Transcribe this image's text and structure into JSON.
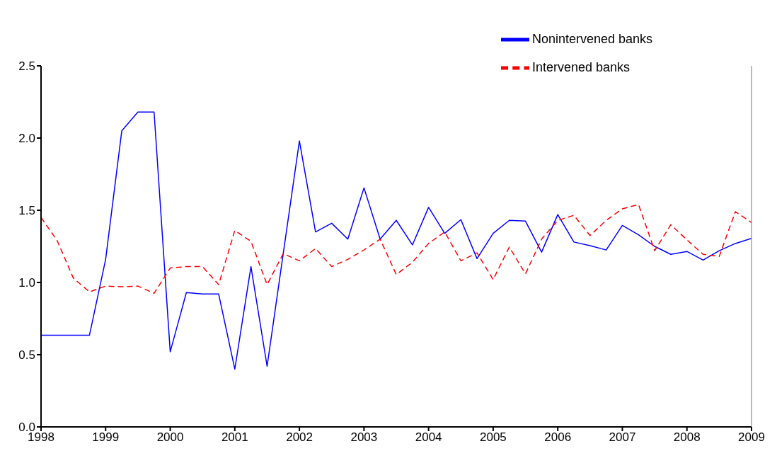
{
  "chart_data": {
    "type": "line",
    "x": [
      1998,
      1998.25,
      1998.5,
      1998.75,
      1999,
      1999.25,
      1999.5,
      1999.75,
      2000,
      2000.25,
      2000.5,
      2000.75,
      2001,
      2001.25,
      2001.5,
      2001.75,
      2002,
      2002.25,
      2002.5,
      2002.75,
      2003,
      2003.25,
      2003.5,
      2003.75,
      2004,
      2004.25,
      2004.5,
      2004.75,
      2005,
      2005.25,
      2005.5,
      2005.75,
      2006,
      2006.25,
      2006.5,
      2006.75,
      2007,
      2007.25,
      2007.5,
      2007.75,
      2008,
      2008.25,
      2008.5,
      2008.75,
      2009
    ],
    "series": [
      {
        "name": "Nonintervened banks",
        "color": "#0000ff",
        "line_style": "solid",
        "values": [
          0.635,
          0.635,
          0.635,
          0.635,
          1.16,
          2.05,
          2.18,
          2.18,
          0.52,
          0.93,
          0.92,
          0.92,
          0.4,
          1.11,
          0.42,
          1.2,
          1.98,
          1.35,
          1.41,
          1.3,
          1.655,
          1.3,
          1.43,
          1.26,
          1.52,
          1.34,
          1.435,
          1.165,
          1.34,
          1.43,
          1.425,
          1.21,
          1.47,
          1.28,
          1.255,
          1.225,
          1.395,
          1.33,
          1.25,
          1.195,
          1.215,
          1.155,
          1.22,
          1.27,
          1.305
        ]
      },
      {
        "name": "Intervened banks",
        "color": "#ff0000",
        "line_style": "dashed",
        "values": [
          1.45,
          1.29,
          1.03,
          0.935,
          0.975,
          0.97,
          0.975,
          0.925,
          1.1,
          1.11,
          1.11,
          0.985,
          1.36,
          1.285,
          0.985,
          1.2,
          1.15,
          1.235,
          1.11,
          1.16,
          1.225,
          1.3,
          1.055,
          1.14,
          1.27,
          1.35,
          1.15,
          1.205,
          1.02,
          1.245,
          1.06,
          1.3,
          1.43,
          1.465,
          1.325,
          1.43,
          1.51,
          1.54,
          1.22,
          1.4,
          1.295,
          1.195,
          1.18,
          1.49,
          1.415
        ]
      }
    ],
    "xlim": [
      1998,
      2009
    ],
    "xticks": [
      1998,
      1999,
      2000,
      2001,
      2002,
      2003,
      2004,
      2005,
      2006,
      2007,
      2008,
      2009
    ],
    "ylim": [
      0,
      2.5
    ],
    "yticks": [
      {
        "value": 0,
        "label": "0.0"
      },
      {
        "value": 0.5,
        "label": "0.5"
      },
      {
        "value": 1,
        "label": "1.0"
      },
      {
        "value": 1.5,
        "label": "1.5"
      },
      {
        "value": 2,
        "label": "2.0"
      },
      {
        "value": 2.5,
        "label": "2.5"
      }
    ],
    "legend": "top right",
    "grid": false,
    "marker": "none"
  }
}
